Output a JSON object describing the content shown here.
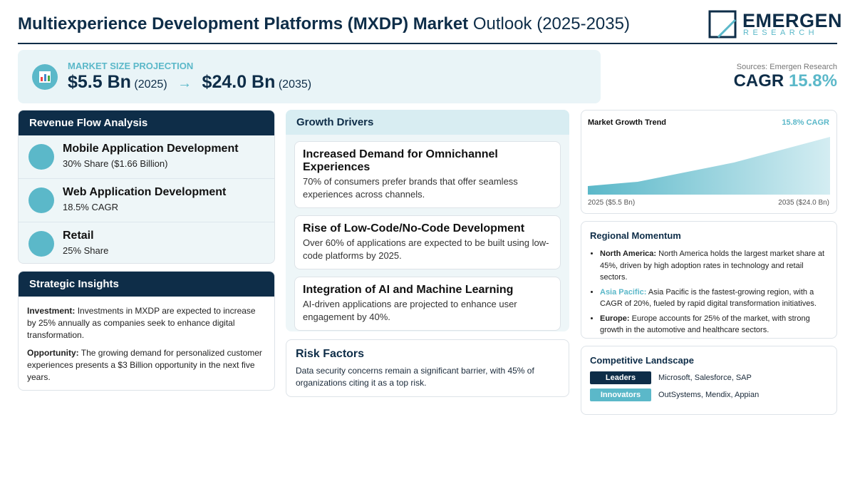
{
  "header": {
    "title_bold": "Multiexperience Development Platforms (MXDP) Market",
    "title_light": "Outlook (2025-2035)",
    "logo_name": "EMERGEN",
    "logo_sub": "RESEARCH"
  },
  "projection": {
    "label": "MARKET SIZE PROJECTION",
    "start_value": "$5.5 Bn",
    "start_year": "(2025)",
    "arrow": "→",
    "end_value": "$24.0 Bn",
    "end_year": "(2035)"
  },
  "sources": "Sources: Emergen Research",
  "cagr": {
    "label": "CAGR",
    "value": "15.8%"
  },
  "revenue_flow": {
    "title": "Revenue Flow Analysis",
    "items": [
      {
        "name": "Mobile Application Development",
        "detail": "30% Share ($1.66 Billion)"
      },
      {
        "name": "Web Application Development",
        "detail": "18.5% CAGR"
      },
      {
        "name": "Retail",
        "detail": "25% Share"
      }
    ]
  },
  "strategic_insights": {
    "title": "Strategic Insights",
    "items": [
      {
        "label": "Investment:",
        "text": "Investments in MXDP are expected to increase by 25% annually as companies seek to enhance digital transformation."
      },
      {
        "label": "Opportunity:",
        "text": "The growing demand for personalized customer experiences presents a $3 Billion opportunity in the next five years."
      }
    ]
  },
  "growth_drivers": {
    "title": "Growth Drivers",
    "items": [
      {
        "title": "Increased Demand for Omnichannel Experiences",
        "text": "70% of consumers prefer brands that offer seamless experiences across channels."
      },
      {
        "title": "Rise of Low-Code/No-Code Development",
        "text": "Over 60% of applications are expected to be built using low-code platforms by 2025."
      },
      {
        "title": "Integration of AI and Machine Learning",
        "text": "AI-driven applications are projected to enhance user engagement by 40%."
      }
    ]
  },
  "risk_factors": {
    "title": "Risk Factors",
    "text": "Data security concerns remain a significant barrier, with 45% of organizations citing it as a top risk."
  },
  "trend": {
    "title": "Market Growth Trend",
    "badge": "15.8% CAGR",
    "start_label": "2025 ($5.5 Bn)",
    "end_label": "2035 ($24.0 Bn)"
  },
  "regional": {
    "title": "Regional Momentum",
    "items": [
      {
        "region": "North America:",
        "text": "North America holds the largest market share at 45%, driven by high adoption rates in technology and retail sectors."
      },
      {
        "region": "Asia Pacific:",
        "text": "Asia Pacific is the fastest-growing region, with a CAGR of 20%, fueled by rapid digital transformation initiatives."
      },
      {
        "region": "Europe:",
        "text": "Europe accounts for 25% of the market, with strong growth in the automotive and healthcare sectors."
      }
    ]
  },
  "competitive": {
    "title": "Competitive Landscape",
    "rows": [
      {
        "tier": "Leaders",
        "companies": "Microsoft, Salesforce, SAP"
      },
      {
        "tier": "Innovators",
        "companies": "OutSystems, Mendix, Appian"
      }
    ]
  }
}
